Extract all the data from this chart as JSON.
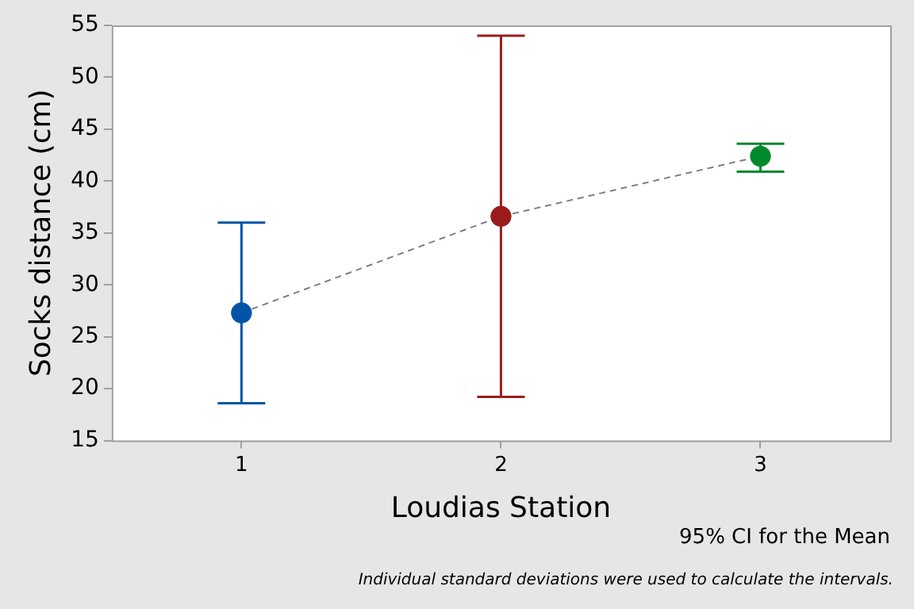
{
  "chart_data": {
    "type": "scatter",
    "xlabel": "Loudias Station",
    "ylabel": "Socks distance (cm)",
    "categories": [
      "1",
      "2",
      "3"
    ],
    "series": [
      {
        "type": "line",
        "color": "#808080",
        "line_style": "dashed",
        "colors": [
          "#0054a6",
          "#9b1c1c",
          "#008a2e"
        ],
        "marker": "circle",
        "values": [
          27.3,
          36.6,
          42.4
        ],
        "errors": [
          [
            18.6,
            36.0
          ],
          [
            19.2,
            54.0
          ],
          [
            40.9,
            43.6
          ]
        ]
      }
    ],
    "ylim": [
      15,
      55
    ],
    "yticks": [
      15,
      20,
      25,
      30,
      35,
      40,
      45,
      50,
      55
    ],
    "grid": false,
    "legend": false,
    "annotations": [
      "95% CI for the Mean",
      "Individual standard deviations were used to calculate the intervals."
    ]
  }
}
